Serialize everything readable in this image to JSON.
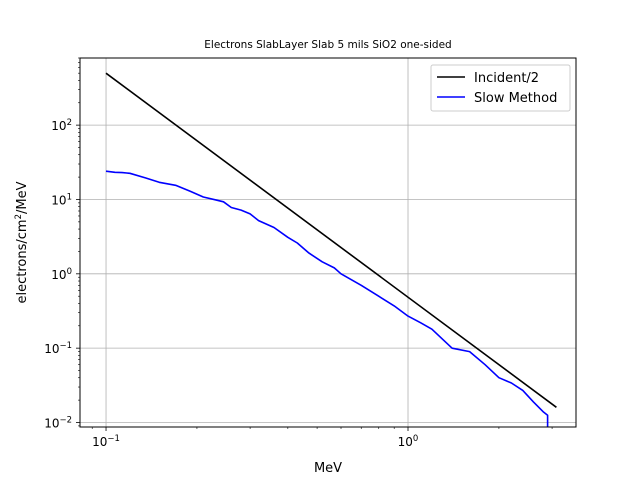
{
  "chart_data": {
    "type": "line",
    "title": "Electrons SlabLayer Slab 5 mils SiO2 one-sided",
    "xlabel": "MeV",
    "ylabel": {
      "base": "electrons/cm",
      "sup": "2",
      "suffix": "/MeV"
    },
    "xscale": "log",
    "yscale": "log",
    "xlim": [
      0.082,
      3.6
    ],
    "ylim": [
      0.0087,
      800
    ],
    "grid": true,
    "legend_position": "top-right",
    "x_ticks": [
      {
        "value": 0.1,
        "base": "10",
        "exp": "−1"
      },
      {
        "value": 1,
        "base": "10",
        "exp": "0"
      }
    ],
    "y_ticks": [
      {
        "value": 0.01,
        "base": "10",
        "exp": "−2"
      },
      {
        "value": 0.1,
        "base": "10",
        "exp": "−1"
      },
      {
        "value": 1,
        "base": "10",
        "exp": "0"
      },
      {
        "value": 10,
        "base": "10",
        "exp": "1"
      },
      {
        "value": 100,
        "base": "10",
        "exp": "2"
      }
    ],
    "series": [
      {
        "name": "Incident/2",
        "color": "#000000",
        "x": [
          0.1,
          3.1
        ],
        "y": [
          500,
          0.016
        ]
      },
      {
        "name": "Slow Method",
        "color": "#0000ff",
        "x": [
          0.1,
          0.107,
          0.113,
          0.12,
          0.135,
          0.15,
          0.17,
          0.19,
          0.21,
          0.23,
          0.245,
          0.26,
          0.28,
          0.3,
          0.32,
          0.36,
          0.4,
          0.43,
          0.47,
          0.52,
          0.57,
          0.6,
          0.7,
          0.8,
          0.9,
          1.0,
          1.1,
          1.2,
          1.4,
          1.6,
          1.8,
          2.0,
          2.2,
          2.4,
          2.6,
          2.8,
          2.9,
          2.9
        ],
        "y": [
          24,
          23.2,
          23,
          22.5,
          19.5,
          17,
          15.5,
          12.9,
          10.8,
          9.9,
          9.3,
          7.8,
          7.2,
          6.4,
          5.2,
          4.2,
          3.1,
          2.6,
          1.9,
          1.45,
          1.2,
          1.0,
          0.7,
          0.5,
          0.37,
          0.27,
          0.22,
          0.18,
          0.1,
          0.09,
          0.06,
          0.04,
          0.034,
          0.027,
          0.019,
          0.014,
          0.0125,
          0.0087
        ]
      }
    ]
  }
}
